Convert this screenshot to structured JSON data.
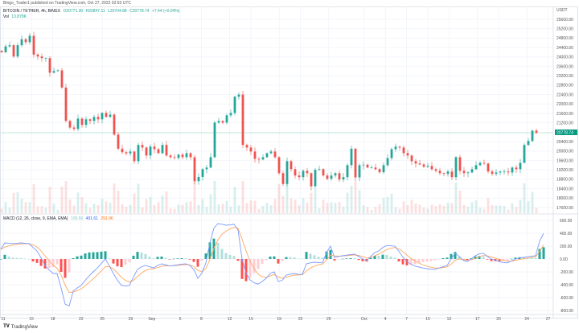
{
  "header": {
    "published": "Bingo_Trader1 published on TradingView.com, Oct 27, 2022 02:53 UTC"
  },
  "legend": {
    "symbol": "BITCOIN / TETHER, 4h, BINGX",
    "open": "O20771.30",
    "high": "H20847.11",
    "low": "L20704.88",
    "close": "C20778.74",
    "change": "+7.44 (+0.04%)",
    "vol_label": "Vol",
    "vol_value": "13.878K"
  },
  "macd_legend": {
    "title": "MACD (12, 26, close, 9, EMA, EMA)",
    "histogram": "109.66",
    "macd": "401.61",
    "signal": "291.96"
  },
  "footer": {
    "brand": "TradingView"
  },
  "colors": {
    "up": "#26a69a",
    "down": "#ef5350",
    "macd": "#7a9bff",
    "signal": "#ffa65c",
    "last_price_bg": "#089981"
  },
  "chart_data": [
    {
      "type": "candlestick",
      "title": "BITCOIN / TETHER, 4h, BINGX",
      "ylabel": "USDT",
      "ylim": [
        17600,
        25600
      ],
      "yticks": [
        "25600.00",
        "25200.00",
        "24800.00",
        "24400.00",
        "24000.00",
        "23600.00",
        "23200.00",
        "22800.00",
        "22400.00",
        "22000.00",
        "21600.00",
        "21200.00",
        "20400.00",
        "20000.00",
        "19600.00",
        "19200.00",
        "18800.00",
        "18400.00",
        "18000.00",
        "17600.00"
      ],
      "ytick_values": [
        25600,
        25200,
        24800,
        24400,
        24000,
        23600,
        23200,
        22800,
        22400,
        22000,
        21600,
        21200,
        20400,
        20000,
        19600,
        19200,
        18800,
        18400,
        18000,
        17600
      ],
      "last_price": 20778.74,
      "last_price_label": "20778.74",
      "xticks": [
        {
          "label": "11",
          "day": 0
        },
        {
          "label": "15",
          "day": 4
        },
        {
          "label": "18",
          "day": 7
        },
        {
          "label": "22",
          "day": 11
        },
        {
          "label": "25",
          "day": 14
        },
        {
          "label": "29",
          "day": 18
        },
        {
          "label": "Sep",
          "day": 21
        },
        {
          "label": "5",
          "day": 25
        },
        {
          "label": "8",
          "day": 28
        },
        {
          "label": "12",
          "day": 32
        },
        {
          "label": "15",
          "day": 35
        },
        {
          "label": "19",
          "day": 39
        },
        {
          "label": "22",
          "day": 42
        },
        {
          "label": "26",
          "day": 46
        },
        {
          "label": "Oct",
          "day": 51
        },
        {
          "label": "4",
          "day": 54
        },
        {
          "label": "7",
          "day": 57
        },
        {
          "label": "10",
          "day": 60
        },
        {
          "label": "13",
          "day": 63
        },
        {
          "label": "17",
          "day": 67
        },
        {
          "label": "20",
          "day": 70
        },
        {
          "label": "24",
          "day": 74
        },
        {
          "label": "27",
          "day": 77
        }
      ],
      "closes": [
        24200,
        24450,
        24500,
        24020,
        24500,
        24750,
        24630,
        24900,
        24100,
        24020,
        23950,
        23950,
        23330,
        23400,
        23430,
        22700,
        21280,
        21000,
        20940,
        21380,
        21110,
        21350,
        21280,
        21450,
        21350,
        21620,
        21450,
        21550,
        20700,
        20100,
        19950,
        19900,
        19980,
        19570,
        20260,
        20150,
        19810,
        20190,
        20080,
        19910,
        20260,
        19810,
        19740,
        19710,
        19850,
        19740,
        19910,
        19740,
        18720,
        18900,
        19230,
        19300,
        19740,
        21210,
        21280,
        21210,
        21520,
        21620,
        22310,
        22400,
        20260,
        20150,
        19980,
        19670,
        19640,
        19740,
        19910,
        19980,
        19740,
        19060,
        18600,
        19570,
        19230,
        18960,
        18890,
        19160,
        19060,
        18500,
        19200,
        19230,
        18960,
        18820,
        18960,
        19060,
        18790,
        18890,
        19400,
        20100,
        18880,
        19400,
        19420,
        19300,
        19300,
        19230,
        19100,
        19400,
        19700,
        20080,
        20190,
        20150,
        19910,
        19810,
        19570,
        19470,
        19430,
        19330,
        19370,
        19230,
        19160,
        19060,
        19030,
        19130,
        18890,
        19740,
        19160,
        19060,
        19090,
        19230,
        19400,
        19500,
        19470,
        19130,
        19030,
        19090,
        19130,
        19130,
        19090,
        19300,
        19230,
        19500,
        20260,
        20430,
        20870,
        20779
      ]
    },
    {
      "type": "line",
      "title": "MACD (12, 26, close, 9, EMA, EMA)",
      "ylim": [
        -800,
        600
      ],
      "yticks": [
        "600.00",
        "400.00",
        "200.00",
        "0.00",
        "-200.00",
        "-400.00",
        "-600.00",
        "-800.00"
      ],
      "ytick_values": [
        600,
        400,
        200,
        0,
        -200,
        -400,
        -600,
        -800
      ],
      "signal_smoothing": 0.35,
      "series": [
        {
          "name": "MACD",
          "values": [
            150,
            250,
            245,
            240,
            245,
            250,
            245,
            240,
            180,
            125,
            20,
            -100,
            -170,
            -225,
            -225,
            -450,
            -700,
            -730,
            -500,
            -450,
            -410,
            -330,
            -260,
            -200,
            -140,
            -70,
            0,
            -110,
            -225,
            -330,
            -410,
            -420,
            -410,
            -280,
            -160,
            -120,
            -100,
            -120,
            -140,
            -100,
            -75,
            -90,
            -110,
            -100,
            -90,
            -80,
            -75,
            -100,
            -160,
            -300,
            -220,
            -60,
            250,
            480,
            550,
            540,
            525,
            530,
            540,
            450,
            0,
            -220,
            -325,
            -370,
            -390,
            -350,
            -300,
            -225,
            -200,
            -350,
            -330,
            -250,
            -235,
            -225,
            -240,
            -240,
            -75,
            -60,
            -50,
            -55,
            -60,
            100,
            200,
            25,
            40,
            50,
            60,
            70,
            75,
            40,
            0,
            -25,
            40,
            100,
            125,
            180,
            210,
            205,
            200,
            120,
            30,
            -40,
            -80,
            -110,
            -125,
            -140,
            -150,
            -160,
            -160,
            -140,
            -120,
            -100,
            0,
            90,
            40,
            -20,
            -40,
            0,
            50,
            80,
            90,
            40,
            0,
            -20,
            -40,
            -55,
            -60,
            -30,
            0,
            20,
            25,
            35,
            45,
            50,
            275,
            400
          ]
        }
      ]
    }
  ]
}
